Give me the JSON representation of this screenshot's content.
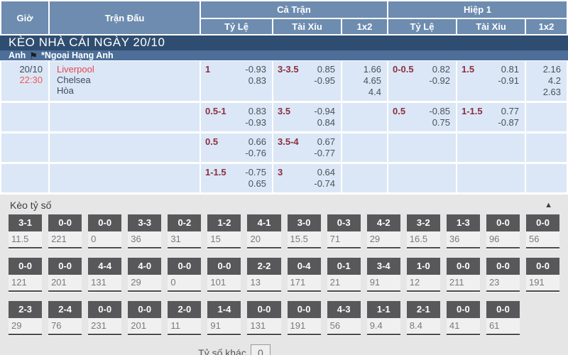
{
  "colors": {
    "header_blue": "#6d8cb0",
    "navy": "#2e4d70",
    "league_band": "#4c6e99",
    "cell_blue": "#dbe7f6",
    "handicap_maroon": "#8b2e3e",
    "odds_text": "#4a5158",
    "time_red": "#ee5a5e",
    "home_red": "#e8474d",
    "score_box_gray": "#58585a"
  },
  "header": {
    "col_time": "Giờ",
    "col_match": "Trận Đấu",
    "group_full": "Cả Trận",
    "group_half": "Hiệp 1",
    "sub_handicap": "Tỷ Lệ",
    "sub_overunder": "Tài Xỉu",
    "sub_1x2": "1x2"
  },
  "date_band": "KÈO NHÀ CÁI NGÀY 20/10",
  "league_band": {
    "country": "Anh",
    "flag_icon": "england-flag",
    "league": "*Ngoại Hạng Anh"
  },
  "match": {
    "date": "20/10",
    "time": "22:30",
    "home": "Liverpool",
    "away": "Chelsea",
    "draw": "Hòa"
  },
  "odds_rows": [
    {
      "full_hdp": {
        "line": "1",
        "v1": "-0.93",
        "v2": "0.83"
      },
      "full_ou": {
        "line": "3-3.5",
        "v1": "0.85",
        "v2": "-0.95"
      },
      "full_1x2": [
        "1.66",
        "4.65",
        "4.4"
      ],
      "half_hdp": {
        "line": "0-0.5",
        "v1": "0.82",
        "v2": "-0.92"
      },
      "half_ou": {
        "line": "1.5",
        "v1": "0.81",
        "v2": "-0.91"
      },
      "half_1x2": [
        "2.16",
        "4.2",
        "2.63"
      ]
    },
    {
      "full_hdp": {
        "line": "0.5-1",
        "v1": "0.83",
        "v2": "-0.93"
      },
      "full_ou": {
        "line": "3.5",
        "v1": "-0.94",
        "v2": "0.84"
      },
      "full_1x2": null,
      "half_hdp": {
        "line": "0.5",
        "v1": "-0.85",
        "v2": "0.75"
      },
      "half_ou": {
        "line": "1-1.5",
        "v1": "0.77",
        "v2": "-0.87"
      },
      "half_1x2": null
    },
    {
      "full_hdp": {
        "line": "0.5",
        "v1": "0.66",
        "v2": "-0.76"
      },
      "full_ou": {
        "line": "3.5-4",
        "v1": "0.67",
        "v2": "-0.77"
      },
      "full_1x2": null,
      "half_hdp": null,
      "half_ou": null,
      "half_1x2": null
    },
    {
      "full_hdp": {
        "line": "1-1.5",
        "v1": "-0.75",
        "v2": "0.65"
      },
      "full_ou": {
        "line": "3",
        "v1": "0.64",
        "v2": "-0.74"
      },
      "full_1x2": null,
      "half_hdp": null,
      "half_ou": null,
      "half_1x2": null
    }
  ],
  "score_section": {
    "title": "Kèo tỷ số",
    "collapse_icon": "▲",
    "rows": [
      [
        {
          "score": "3-1",
          "odds": "11.5"
        },
        {
          "score": "0-0",
          "odds": "221"
        },
        {
          "score": "0-0",
          "odds": "0"
        },
        {
          "score": "3-3",
          "odds": "36"
        },
        {
          "score": "0-2",
          "odds": "31"
        },
        {
          "score": "1-2",
          "odds": "15"
        },
        {
          "score": "4-1",
          "odds": "20"
        },
        {
          "score": "3-0",
          "odds": "15.5"
        },
        {
          "score": "0-3",
          "odds": "71"
        },
        {
          "score": "4-2",
          "odds": "29"
        },
        {
          "score": "3-2",
          "odds": "16.5"
        },
        {
          "score": "1-3",
          "odds": "36"
        },
        {
          "score": "0-0",
          "odds": "96"
        },
        {
          "score": "0-0",
          "odds": "56"
        }
      ],
      [
        {
          "score": "0-0",
          "odds": "121"
        },
        {
          "score": "0-0",
          "odds": "201"
        },
        {
          "score": "4-4",
          "odds": "131"
        },
        {
          "score": "4-0",
          "odds": "29"
        },
        {
          "score": "0-0",
          "odds": "0"
        },
        {
          "score": "0-0",
          "odds": "101"
        },
        {
          "score": "2-2",
          "odds": "13"
        },
        {
          "score": "0-4",
          "odds": "171"
        },
        {
          "score": "0-1",
          "odds": "21"
        },
        {
          "score": "3-4",
          "odds": "91"
        },
        {
          "score": "1-0",
          "odds": "12"
        },
        {
          "score": "0-0",
          "odds": "211"
        },
        {
          "score": "0-0",
          "odds": "23"
        },
        {
          "score": "0-0",
          "odds": "191"
        }
      ],
      [
        {
          "score": "2-3",
          "odds": "29"
        },
        {
          "score": "2-4",
          "odds": "76"
        },
        {
          "score": "0-0",
          "odds": "231"
        },
        {
          "score": "0-0",
          "odds": "201"
        },
        {
          "score": "2-0",
          "odds": "11"
        },
        {
          "score": "1-4",
          "odds": "91"
        },
        {
          "score": "0-0",
          "odds": "131"
        },
        {
          "score": "0-0",
          "odds": "191"
        },
        {
          "score": "4-3",
          "odds": "56"
        },
        {
          "score": "1-1",
          "odds": "9.4"
        },
        {
          "score": "2-1",
          "odds": "8.4"
        },
        {
          "score": "0-0",
          "odds": "41"
        },
        {
          "score": "0-0",
          "odds": "61"
        },
        {
          "empty": true
        }
      ]
    ],
    "other_label": "Tỷ số khác",
    "other_value": "0"
  }
}
